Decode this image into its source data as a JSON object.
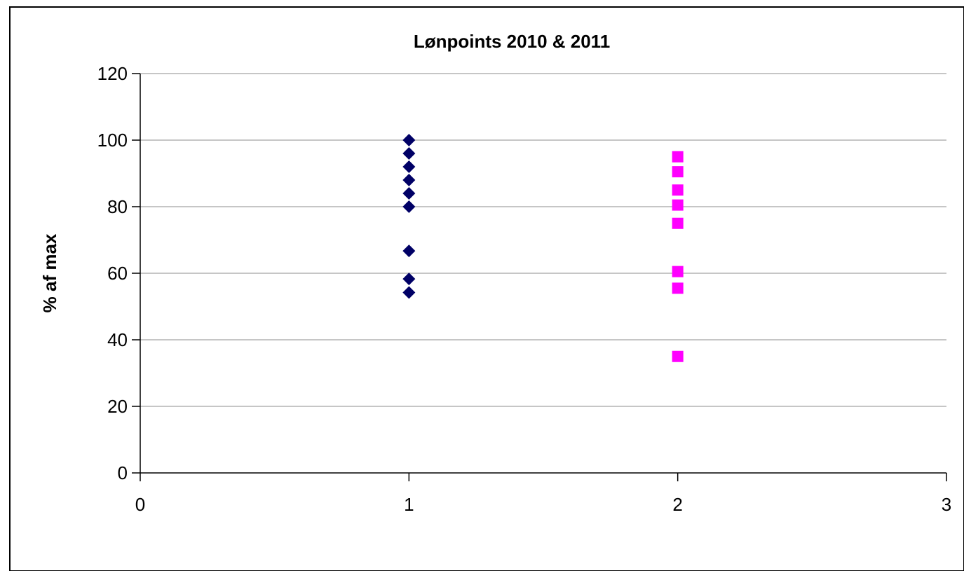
{
  "chart_data": {
    "type": "scatter",
    "title": "Lønpoints 2010 & 2011",
    "xlabel": "",
    "ylabel": "% af max",
    "xlim": [
      0,
      3
    ],
    "ylim": [
      0,
      120
    ],
    "x_ticks": [
      0,
      1,
      2,
      3
    ],
    "y_ticks": [
      0,
      20,
      40,
      60,
      80,
      100,
      120
    ],
    "grid": "horizontal",
    "legend": "none",
    "series": [
      {
        "marker": "diamond",
        "color": "#000066",
        "points": [
          {
            "x": 1,
            "y": 100
          },
          {
            "x": 1,
            "y": 96
          },
          {
            "x": 1,
            "y": 92
          },
          {
            "x": 1,
            "y": 88
          },
          {
            "x": 1,
            "y": 84
          },
          {
            "x": 1,
            "y": 80
          },
          {
            "x": 1,
            "y": 66.7
          },
          {
            "x": 1,
            "y": 58.3
          },
          {
            "x": 1,
            "y": 54.2
          }
        ]
      },
      {
        "marker": "square",
        "color": "#ff00ff",
        "points": [
          {
            "x": 2,
            "y": 95
          },
          {
            "x": 2,
            "y": 90.5
          },
          {
            "x": 2,
            "y": 85
          },
          {
            "x": 2,
            "y": 80.5
          },
          {
            "x": 2,
            "y": 75
          },
          {
            "x": 2,
            "y": 60.5
          },
          {
            "x": 2,
            "y": 55.5
          },
          {
            "x": 2,
            "y": 35
          }
        ]
      }
    ]
  }
}
